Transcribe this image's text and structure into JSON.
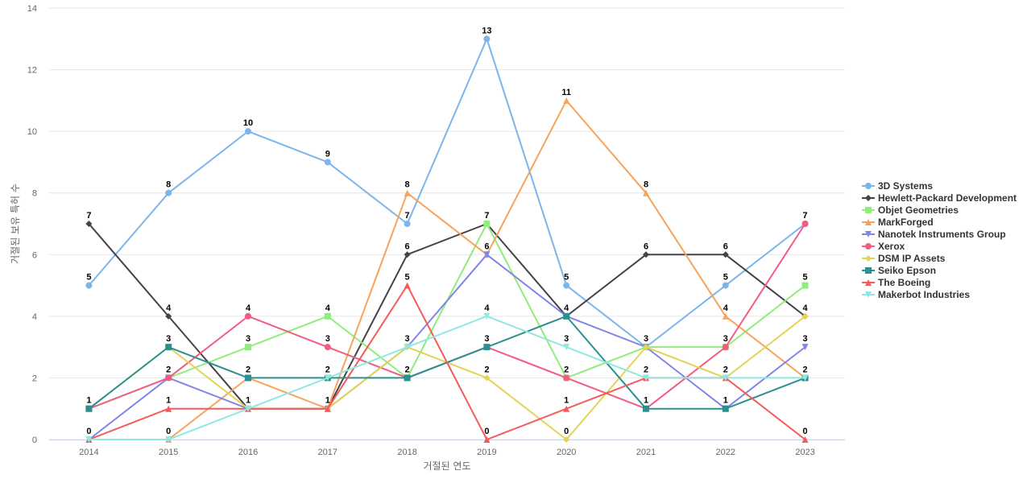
{
  "chart_data": {
    "type": "line",
    "title": "",
    "xlabel": "거절된 연도",
    "ylabel": "거절된 보유 특허 수",
    "x": [
      "2014",
      "2015",
      "2016",
      "2017",
      "2018",
      "2019",
      "2020",
      "2021",
      "2022",
      "2023"
    ],
    "ylim": [
      0,
      14
    ],
    "yticks": [
      0,
      2,
      4,
      6,
      8,
      10,
      12,
      14
    ],
    "grid": true,
    "legend_position": "right",
    "series": [
      {
        "name": "3D Systems",
        "color": "#7cb5ec",
        "marker": "circle",
        "values": [
          5,
          8,
          10,
          9,
          7,
          13,
          5,
          3,
          5,
          7
        ]
      },
      {
        "name": "Hewlett-Packard Development",
        "color": "#434348",
        "marker": "diamond",
        "values": [
          7,
          4,
          1,
          1,
          6,
          7,
          4,
          6,
          6,
          4
        ]
      },
      {
        "name": "Objet Geometries",
        "color": "#90ed7d",
        "marker": "square",
        "values": [
          1,
          2,
          3,
          4,
          2,
          7,
          2,
          3,
          3,
          5
        ]
      },
      {
        "name": "MarkForged",
        "color": "#f7a35c",
        "marker": "triangle",
        "values": [
          0,
          0,
          2,
          1,
          8,
          6,
          11,
          8,
          4,
          2
        ]
      },
      {
        "name": "Nanotek Instruments Group",
        "color": "#8085e9",
        "marker": "triangle-down",
        "values": [
          0,
          2,
          1,
          1,
          3,
          6,
          4,
          3,
          1,
          3
        ]
      },
      {
        "name": "Xerox",
        "color": "#f15c80",
        "marker": "circle",
        "values": [
          1,
          2,
          4,
          3,
          2,
          3,
          2,
          1,
          3,
          7
        ]
      },
      {
        "name": "DSM IP Assets",
        "color": "#e4d354",
        "marker": "diamond",
        "values": [
          1,
          3,
          1,
          1,
          3,
          2,
          0,
          3,
          2,
          4
        ]
      },
      {
        "name": "Seiko Epson",
        "color": "#2b908f",
        "marker": "square",
        "values": [
          1,
          3,
          2,
          2,
          2,
          3,
          4,
          1,
          1,
          2
        ]
      },
      {
        "name": "The Boeing",
        "color": "#f45b5b",
        "marker": "triangle",
        "values": [
          0,
          1,
          1,
          1,
          5,
          0,
          1,
          2,
          2,
          0
        ]
      },
      {
        "name": "Makerbot Industries",
        "color": "#91e8e1",
        "marker": "triangle-down",
        "values": [
          0,
          0,
          1,
          2,
          3,
          4,
          3,
          2,
          2,
          2
        ]
      }
    ],
    "data_labels": [
      {
        "series": 1,
        "x": 0,
        "text": "7"
      },
      {
        "series": 0,
        "x": 0,
        "text": "5"
      },
      {
        "series": 7,
        "x": 0,
        "text": "1"
      },
      {
        "series": 3,
        "x": 0,
        "text": "0"
      },
      {
        "series": 0,
        "x": 1,
        "text": "8"
      },
      {
        "series": 1,
        "x": 1,
        "text": "4"
      },
      {
        "series": 7,
        "x": 1,
        "text": "3"
      },
      {
        "series": 5,
        "x": 1,
        "text": "2"
      },
      {
        "series": 8,
        "x": 1,
        "text": "1"
      },
      {
        "series": 3,
        "x": 1,
        "text": "0"
      },
      {
        "series": 0,
        "x": 2,
        "text": "10"
      },
      {
        "series": 5,
        "x": 2,
        "text": "4"
      },
      {
        "series": 2,
        "x": 2,
        "text": "3"
      },
      {
        "series": 7,
        "x": 2,
        "text": "2"
      },
      {
        "series": 1,
        "x": 2,
        "text": "1"
      },
      {
        "series": 0,
        "x": 3,
        "text": "9"
      },
      {
        "series": 2,
        "x": 3,
        "text": "4"
      },
      {
        "series": 5,
        "x": 3,
        "text": "3"
      },
      {
        "series": 7,
        "x": 3,
        "text": "2"
      },
      {
        "series": 1,
        "x": 3,
        "text": "1"
      },
      {
        "series": 3,
        "x": 4,
        "text": "8"
      },
      {
        "series": 0,
        "x": 4,
        "text": "7"
      },
      {
        "series": 1,
        "x": 4,
        "text": "6"
      },
      {
        "series": 8,
        "x": 4,
        "text": "5"
      },
      {
        "series": 4,
        "x": 4,
        "text": "3"
      },
      {
        "series": 7,
        "x": 4,
        "text": "2"
      },
      {
        "series": 0,
        "x": 5,
        "text": "13"
      },
      {
        "series": 2,
        "x": 5,
        "text": "7"
      },
      {
        "series": 4,
        "x": 5,
        "text": "6"
      },
      {
        "series": 9,
        "x": 5,
        "text": "4"
      },
      {
        "series": 7,
        "x": 5,
        "text": "3"
      },
      {
        "series": 6,
        "x": 5,
        "text": "2"
      },
      {
        "series": 8,
        "x": 5,
        "text": "0"
      },
      {
        "series": 3,
        "x": 6,
        "text": "11"
      },
      {
        "series": 0,
        "x": 6,
        "text": "5"
      },
      {
        "series": 7,
        "x": 6,
        "text": "4"
      },
      {
        "series": 9,
        "x": 6,
        "text": "3"
      },
      {
        "series": 5,
        "x": 6,
        "text": "2"
      },
      {
        "series": 8,
        "x": 6,
        "text": "1"
      },
      {
        "series": 6,
        "x": 6,
        "text": "0"
      },
      {
        "series": 3,
        "x": 7,
        "text": "8"
      },
      {
        "series": 1,
        "x": 7,
        "text": "6"
      },
      {
        "series": 0,
        "x": 7,
        "text": "3"
      },
      {
        "series": 9,
        "x": 7,
        "text": "2"
      },
      {
        "series": 7,
        "x": 7,
        "text": "1"
      },
      {
        "series": 1,
        "x": 8,
        "text": "6"
      },
      {
        "series": 0,
        "x": 8,
        "text": "5"
      },
      {
        "series": 3,
        "x": 8,
        "text": "4"
      },
      {
        "series": 5,
        "x": 8,
        "text": "3"
      },
      {
        "series": 6,
        "x": 8,
        "text": "2"
      },
      {
        "series": 7,
        "x": 8,
        "text": "1"
      },
      {
        "series": 0,
        "x": 9,
        "text": "7"
      },
      {
        "series": 2,
        "x": 9,
        "text": "5"
      },
      {
        "series": 1,
        "x": 9,
        "text": "4"
      },
      {
        "series": 4,
        "x": 9,
        "text": "3"
      },
      {
        "series": 7,
        "x": 9,
        "text": "2"
      },
      {
        "series": 8,
        "x": 9,
        "text": "0"
      }
    ]
  }
}
